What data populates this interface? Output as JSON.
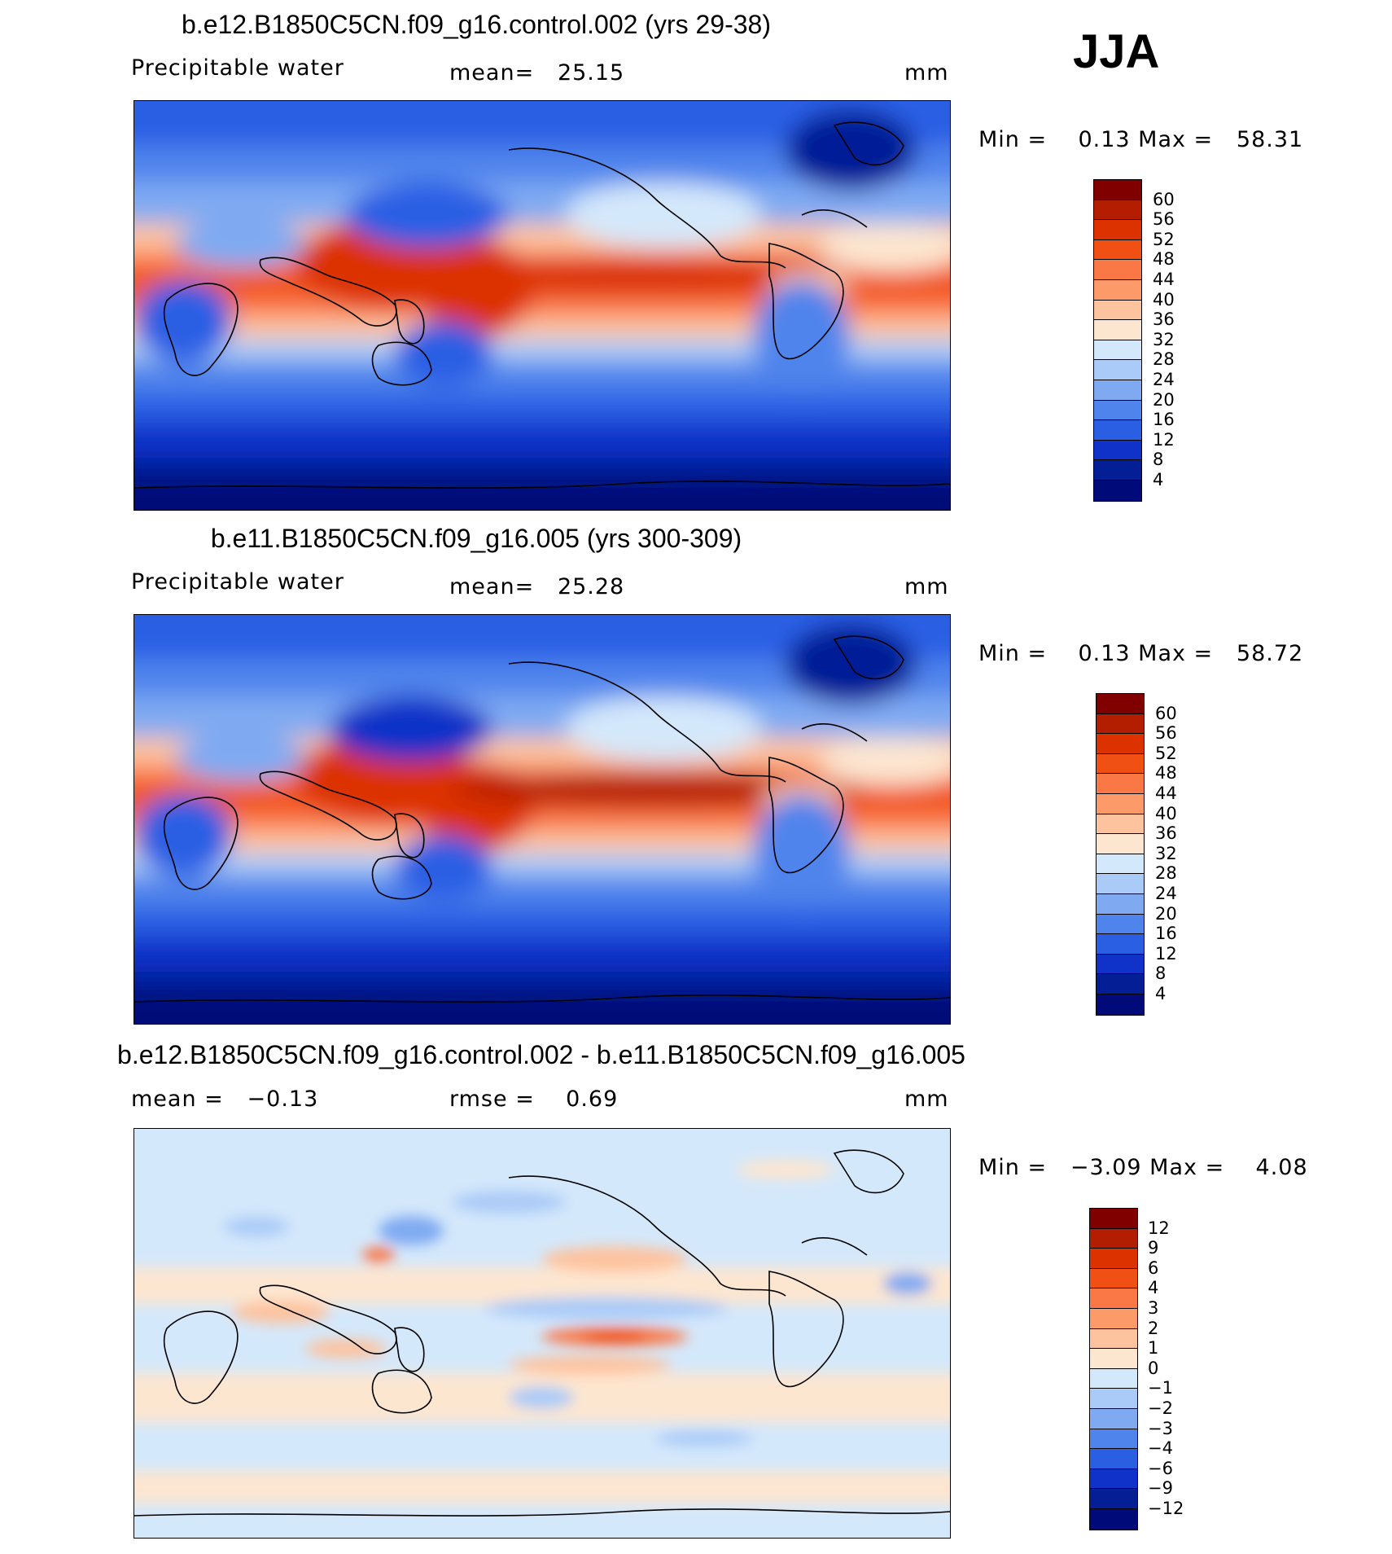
{
  "season": "JJA",
  "panels": [
    {
      "title": "b.e12.B1850C5CN.f09_g16.control.002 (yrs 29-38)",
      "variable": "Precipitable water",
      "stat": "mean=   25.15",
      "units": "mm",
      "minmax": "Min =    0.13 Max =   58.31",
      "colorbar": {
        "labels": [
          "60",
          "56",
          "52",
          "48",
          "44",
          "40",
          "36",
          "32",
          "28",
          "24",
          "20",
          "16",
          "12",
          "8",
          "4"
        ],
        "colors": [
          "#800000",
          "#b41e00",
          "#dc3200",
          "#f05014",
          "#fa7846",
          "#fc9a6a",
          "#fdc39f",
          "#fde6d0",
          "#d4e8fb",
          "#aacbf7",
          "#7faaf2",
          "#4f84ec",
          "#2a5fe4",
          "#1032c8",
          "#041e96",
          "#000a78"
        ]
      }
    },
    {
      "title": "b.e11.B1850C5CN.f09_g16.005 (yrs 300-309)",
      "variable": "Precipitable water",
      "stat": "mean=   25.28",
      "units": "mm",
      "minmax": "Min =    0.13 Max =   58.72",
      "colorbar": {
        "labels": [
          "60",
          "56",
          "52",
          "48",
          "44",
          "40",
          "36",
          "32",
          "28",
          "24",
          "20",
          "16",
          "12",
          "8",
          "4"
        ],
        "colors": [
          "#800000",
          "#b41e00",
          "#dc3200",
          "#f05014",
          "#fa7846",
          "#fc9a6a",
          "#fdc39f",
          "#fde6d0",
          "#d4e8fb",
          "#aacbf7",
          "#7faaf2",
          "#4f84ec",
          "#2a5fe4",
          "#1032c8",
          "#041e96",
          "#000a78"
        ]
      }
    },
    {
      "title": "b.e12.B1850C5CN.f09_g16.control.002 - b.e11.B1850C5CN.f09_g16.005",
      "variable": "mean =   −0.13",
      "stat": "rmse =    0.69",
      "units": "mm",
      "minmax": "Min =   −3.09 Max =    4.08",
      "colorbar": {
        "labels": [
          "12",
          "9",
          "6",
          "4",
          "3",
          "2",
          "1",
          "0",
          "−1",
          "−2",
          "−3",
          "−4",
          "−6",
          "−9",
          "−12"
        ],
        "colors": [
          "#800000",
          "#b41e00",
          "#dc3200",
          "#f05014",
          "#fa7846",
          "#fc9a6a",
          "#fdc39f",
          "#fde6d0",
          "#d4e8fb",
          "#aacbf7",
          "#7faaf2",
          "#4f84ec",
          "#2a5fe4",
          "#1032c8",
          "#041e96",
          "#000a78"
        ]
      }
    }
  ]
}
